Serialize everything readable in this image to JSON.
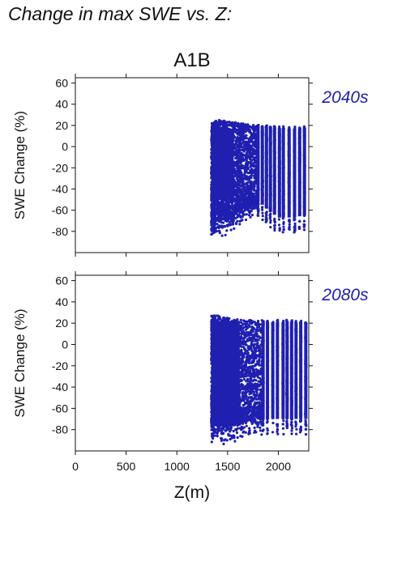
{
  "figure": {
    "title": "Change in max SWE vs. Z:",
    "scenario": "A1B",
    "xlabel": "Z(m)",
    "point_color": "#1f1fb0"
  },
  "chart_data": [
    {
      "type": "scatter",
      "period": "2040s",
      "ylabel": "SWE Change (%)",
      "xlim": [
        0,
        2300
      ],
      "ylim": [
        -100,
        65
      ],
      "xticks": [
        0,
        500,
        1000,
        1500,
        2000
      ],
      "yticks": [
        -80,
        -60,
        -40,
        -20,
        0,
        20,
        40,
        60
      ],
      "x_range": [
        1340,
        2280
      ],
      "y_band_upper": [
        [
          1340,
          22
        ],
        [
          1400,
          25
        ],
        [
          1500,
          24
        ],
        [
          1700,
          21
        ],
        [
          1900,
          20
        ],
        [
          2100,
          19
        ],
        [
          2280,
          19
        ]
      ],
      "y_band_lower": [
        [
          1340,
          -90
        ],
        [
          1400,
          -86
        ],
        [
          1500,
          -85
        ],
        [
          1600,
          -78
        ],
        [
          1700,
          -70
        ],
        [
          1800,
          -66
        ],
        [
          1900,
          -75
        ],
        [
          2000,
          -82
        ],
        [
          2100,
          -82
        ],
        [
          2280,
          -80
        ]
      ],
      "density_note": "dense cloud 1340-1800 m, vertical streaks beyond 1800 m"
    },
    {
      "type": "scatter",
      "period": "2080s",
      "ylabel": "SWE Change (%)",
      "xlim": [
        0,
        2300
      ],
      "ylim": [
        -100,
        65
      ],
      "xticks": [
        0,
        500,
        1000,
        1500,
        2000
      ],
      "yticks": [
        -80,
        -60,
        -40,
        -20,
        0,
        20,
        40,
        60
      ],
      "x_range": [
        1340,
        2280
      ],
      "y_band_upper": [
        [
          1340,
          27
        ],
        [
          1400,
          27
        ],
        [
          1500,
          25
        ],
        [
          1700,
          23
        ],
        [
          1900,
          23
        ],
        [
          2100,
          23
        ],
        [
          2280,
          22
        ]
      ],
      "y_band_lower": [
        [
          1340,
          -92
        ],
        [
          1400,
          -95
        ],
        [
          1500,
          -95
        ],
        [
          1600,
          -92
        ],
        [
          1700,
          -88
        ],
        [
          1800,
          -86
        ],
        [
          1900,
          -85
        ],
        [
          2000,
          -85
        ],
        [
          2100,
          -85
        ],
        [
          2280,
          -85
        ]
      ],
      "density_note": "dense cloud 1340-1850 m, vertical streaks beyond 1850 m"
    }
  ]
}
